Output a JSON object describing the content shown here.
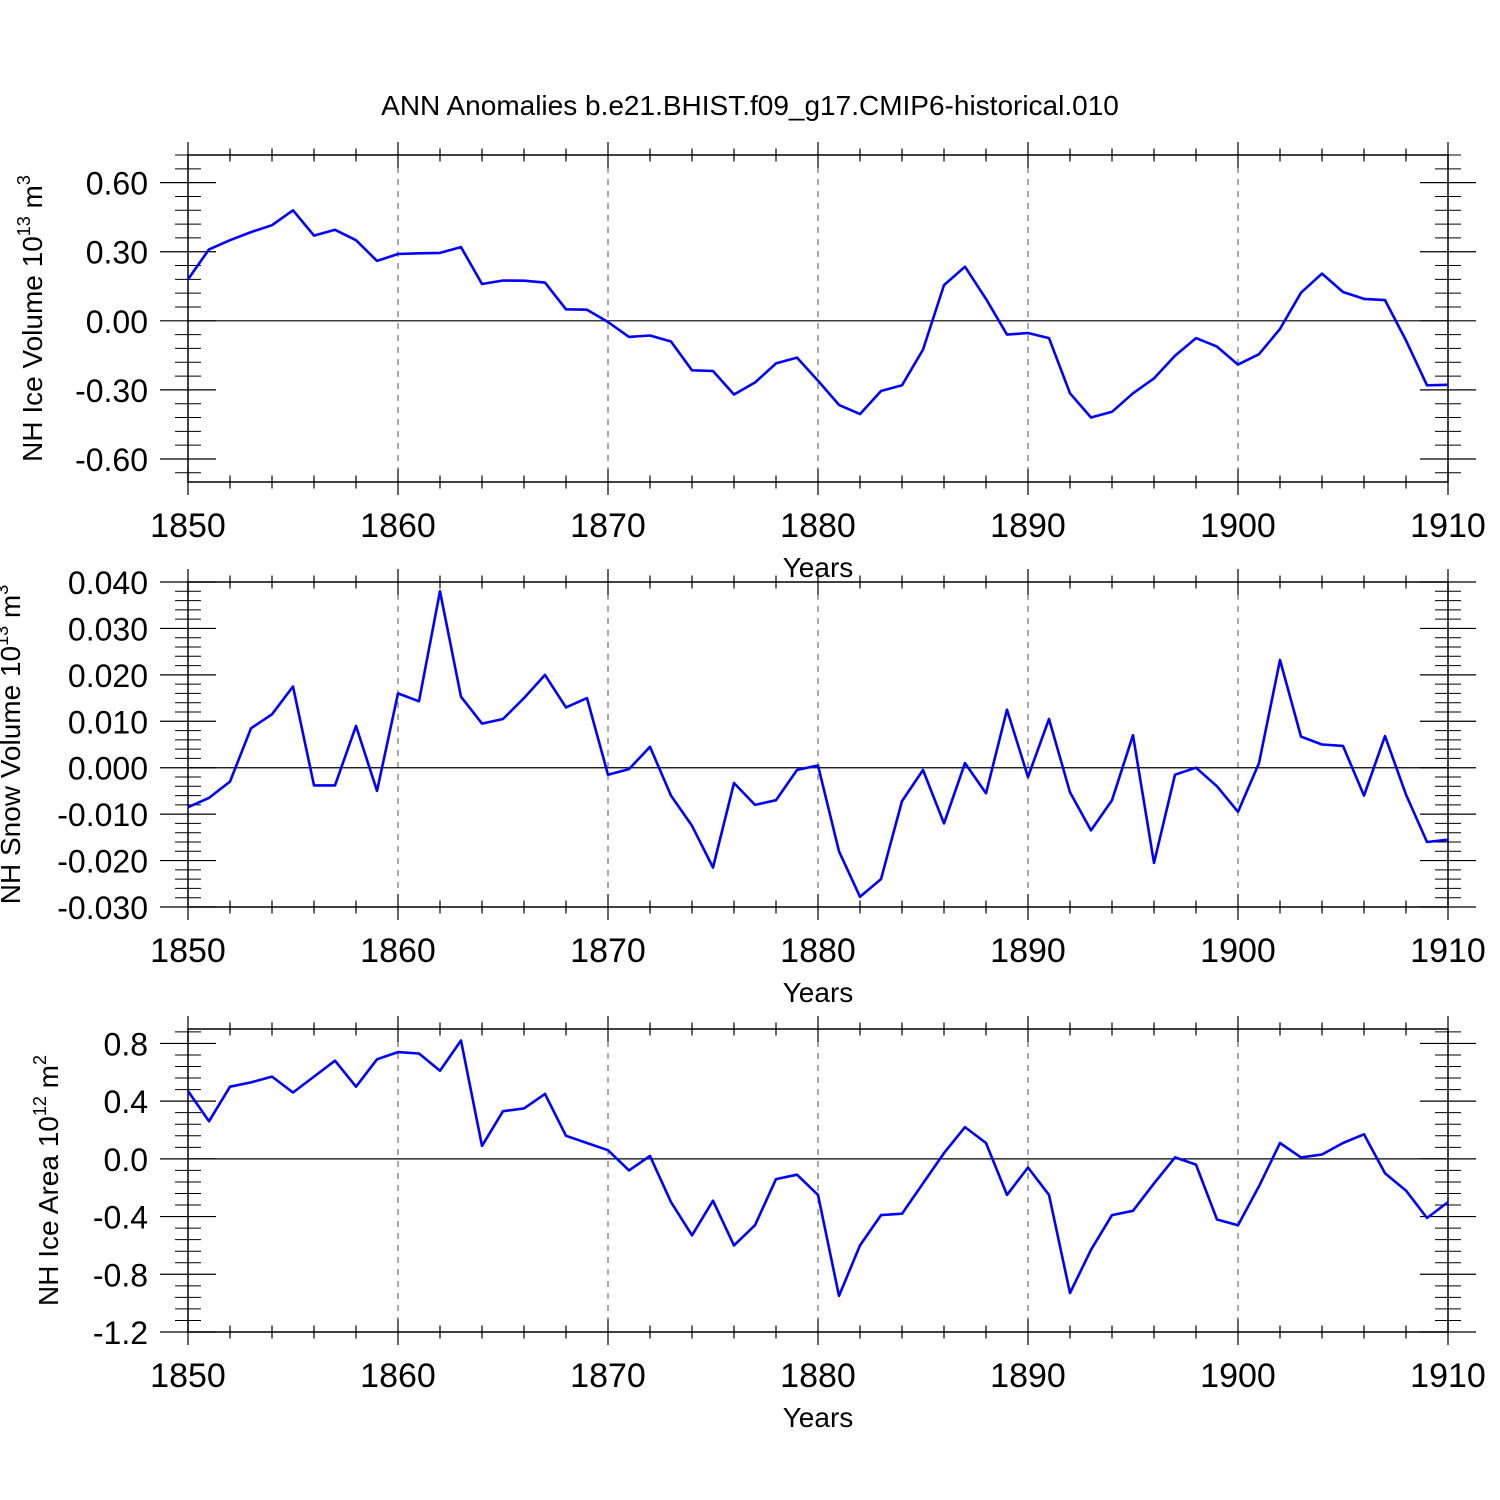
{
  "figure_title": "ANN Anomalies b.e21.BHIST.f09_g17.CMIP6-historical.010",
  "line_color": "#0000ff",
  "chart_data": [
    {
      "type": "line",
      "ylabel": {
        "text": "NH Ice Volume 10",
        "sup": "13",
        "unit": " m",
        "unit_sup": "3"
      },
      "xlabel": "Years",
      "xlim": [
        1850,
        1910
      ],
      "ylim": [
        -0.7,
        0.72
      ],
      "xticks": [
        1850,
        1860,
        1870,
        1880,
        1890,
        1900,
        1910
      ],
      "xtick_labels": [
        "1850",
        "1860",
        "1870",
        "1880",
        "1890",
        "1900",
        "1910"
      ],
      "yticks": [
        -0.6,
        -0.3,
        0.0,
        0.3,
        0.6
      ],
      "ytick_labels": [
        "-0.60",
        "-0.30",
        "0.00",
        "0.30",
        "0.60"
      ],
      "y_minor_step": 0.06,
      "x": [
        1850,
        1851,
        1852,
        1853,
        1854,
        1855,
        1856,
        1857,
        1858,
        1859,
        1860,
        1861,
        1862,
        1863,
        1864,
        1865,
        1866,
        1867,
        1868,
        1869,
        1870,
        1871,
        1872,
        1873,
        1874,
        1875,
        1876,
        1877,
        1878,
        1879,
        1880,
        1881,
        1882,
        1883,
        1884,
        1885,
        1886,
        1887,
        1888,
        1889,
        1890,
        1891,
        1892,
        1893,
        1894,
        1895,
        1896,
        1897,
        1898,
        1899,
        1900,
        1901,
        1902,
        1903,
        1904,
        1905,
        1906,
        1907,
        1908,
        1909,
        1910
      ],
      "values": [
        0.18,
        0.31,
        0.35,
        0.385,
        0.415,
        0.48,
        0.37,
        0.395,
        0.35,
        0.26,
        0.29,
        0.293,
        0.295,
        0.32,
        0.16,
        0.175,
        0.174,
        0.166,
        0.05,
        0.048,
        -0.005,
        -0.07,
        -0.064,
        -0.09,
        -0.215,
        -0.218,
        -0.32,
        -0.268,
        -0.185,
        -0.16,
        -0.26,
        -0.365,
        -0.405,
        -0.305,
        -0.28,
        -0.125,
        0.155,
        0.235,
        0.095,
        -0.06,
        -0.053,
        -0.075,
        -0.315,
        -0.42,
        -0.395,
        -0.315,
        -0.25,
        -0.152,
        -0.075,
        -0.112,
        -0.19,
        -0.145,
        -0.035,
        0.122,
        0.205,
        0.125,
        0.095,
        0.09,
        -0.085,
        -0.28,
        -0.278
      ]
    },
    {
      "type": "line",
      "ylabel": {
        "text": "NH Snow Volume 10",
        "sup": "13",
        "unit": " m",
        "unit_sup": "3"
      },
      "xlabel": "Years",
      "xlim": [
        1850,
        1910
      ],
      "ylim": [
        -0.03,
        0.04
      ],
      "xticks": [
        1850,
        1860,
        1870,
        1880,
        1890,
        1900,
        1910
      ],
      "xtick_labels": [
        "1850",
        "1860",
        "1870",
        "1880",
        "1890",
        "1900",
        "1910"
      ],
      "yticks": [
        -0.03,
        -0.02,
        -0.01,
        0.0,
        0.01,
        0.02,
        0.03,
        0.04
      ],
      "ytick_labels": [
        "-0.030",
        "-0.020",
        "-0.010",
        "0.000",
        "0.010",
        "0.020",
        "0.030",
        "0.040"
      ],
      "y_minor_step": 0.002,
      "x": [
        1850,
        1851,
        1852,
        1853,
        1854,
        1855,
        1856,
        1857,
        1858,
        1859,
        1860,
        1861,
        1862,
        1863,
        1864,
        1865,
        1866,
        1867,
        1868,
        1869,
        1870,
        1871,
        1872,
        1873,
        1874,
        1875,
        1876,
        1877,
        1878,
        1879,
        1880,
        1881,
        1882,
        1883,
        1884,
        1885,
        1886,
        1887,
        1888,
        1889,
        1890,
        1891,
        1892,
        1893,
        1894,
        1895,
        1896,
        1897,
        1898,
        1899,
        1900,
        1901,
        1902,
        1903,
        1904,
        1905,
        1906,
        1907,
        1908,
        1909,
        1910
      ],
      "values": [
        -0.0085,
        -0.0065,
        -0.003,
        0.0085,
        0.0115,
        0.0175,
        -0.0038,
        -0.0038,
        0.009,
        -0.005,
        0.016,
        0.0143,
        0.038,
        0.0153,
        0.0095,
        0.0105,
        0.015,
        0.02,
        0.013,
        0.015,
        -0.0015,
        -0.0003,
        0.0045,
        -0.006,
        -0.0125,
        -0.0215,
        -0.0033,
        -0.008,
        -0.007,
        -0.0005,
        0.0005,
        -0.018,
        -0.0278,
        -0.024,
        -0.0072,
        -0.0005,
        -0.012,
        0.001,
        -0.0055,
        0.0125,
        -0.002,
        0.0105,
        -0.0053,
        -0.0135,
        -0.007,
        0.007,
        -0.0205,
        -0.0015,
        0.0,
        -0.004,
        -0.0095,
        0.001,
        0.0232,
        0.0067,
        0.005,
        0.0047,
        -0.006,
        0.0068,
        -0.0058,
        -0.016,
        -0.0155
      ]
    },
    {
      "type": "line",
      "ylabel": {
        "text": "NH Ice Area 10",
        "sup": "12",
        "unit": " m",
        "unit_sup": "2"
      },
      "xlabel": "Years",
      "xlim": [
        1850,
        1910
      ],
      "ylim": [
        -1.2,
        0.9
      ],
      "xticks": [
        1850,
        1860,
        1870,
        1880,
        1890,
        1900,
        1910
      ],
      "xtick_labels": [
        "1850",
        "1860",
        "1870",
        "1880",
        "1890",
        "1900",
        "1910"
      ],
      "yticks": [
        -1.2,
        -0.8,
        -0.4,
        0.0,
        0.4,
        0.8
      ],
      "ytick_labels": [
        "-1.2",
        "-0.8",
        "-0.4",
        "0.0",
        "0.4",
        "0.8"
      ],
      "y_minor_step": 0.08,
      "x": [
        1850,
        1851,
        1852,
        1853,
        1854,
        1855,
        1856,
        1857,
        1858,
        1859,
        1860,
        1861,
        1862,
        1863,
        1864,
        1865,
        1866,
        1867,
        1868,
        1869,
        1870,
        1871,
        1872,
        1873,
        1874,
        1875,
        1876,
        1877,
        1878,
        1879,
        1880,
        1881,
        1882,
        1883,
        1884,
        1885,
        1886,
        1887,
        1888,
        1889,
        1890,
        1891,
        1892,
        1893,
        1894,
        1895,
        1896,
        1897,
        1898,
        1899,
        1900,
        1901,
        1902,
        1903,
        1904,
        1905,
        1906,
        1907,
        1908,
        1909,
        1910
      ],
      "values": [
        0.47,
        0.26,
        0.5,
        0.53,
        0.57,
        0.46,
        0.57,
        0.68,
        0.5,
        0.69,
        0.74,
        0.73,
        0.61,
        0.82,
        0.09,
        0.33,
        0.35,
        0.45,
        0.16,
        0.11,
        0.06,
        -0.08,
        0.02,
        -0.3,
        -0.53,
        -0.29,
        -0.6,
        -0.46,
        -0.14,
        -0.11,
        -0.25,
        -0.95,
        -0.6,
        -0.39,
        -0.38,
        -0.17,
        0.04,
        0.22,
        0.11,
        -0.25,
        -0.06,
        -0.25,
        -0.93,
        -0.63,
        -0.39,
        -0.36,
        -0.17,
        0.01,
        -0.04,
        -0.42,
        -0.46,
        -0.19,
        0.11,
        0.01,
        0.03,
        0.11,
        0.17,
        -0.1,
        -0.22,
        -0.41,
        -0.3
      ]
    }
  ]
}
